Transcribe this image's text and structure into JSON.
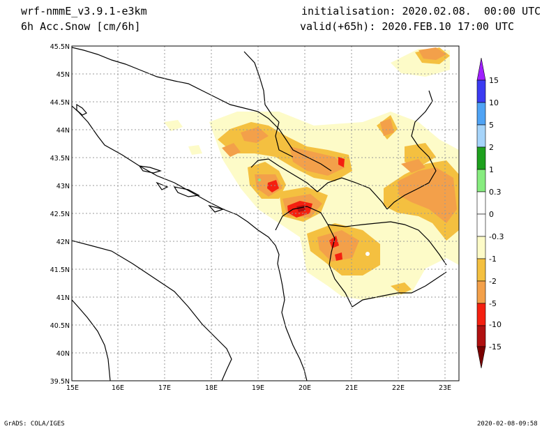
{
  "header": {
    "model": "wrf-nmmE_v3.9.1-e3km",
    "field": "6h Acc.Snow [cm/6h]",
    "init": "initialisation: 2020.02.08.  00:00 UTC",
    "valid": "valid(+65h): 2020.FEB.10 17:00 UTC"
  },
  "axes": {
    "x_labels": [
      "15E",
      "16E",
      "17E",
      "18E",
      "19E",
      "20E",
      "21E",
      "22E",
      "23E"
    ],
    "y_labels": [
      "45.5N",
      "45N",
      "44.5N",
      "44N",
      "43.5N",
      "43N",
      "42.5N",
      "42N",
      "41.5N",
      "41N",
      "40.5N",
      "40N",
      "39.5N"
    ]
  },
  "colorbar": {
    "labels": [
      "15",
      "10",
      "5",
      "2",
      "1",
      "0.3",
      "0",
      "-0.3",
      "-1",
      "-2",
      "-5",
      "-10",
      "-15"
    ],
    "colors": [
      "#9f1fff",
      "#3b3bf2",
      "#4fa3f5",
      "#a6d4fa",
      "#1ea01e",
      "#87ec7f",
      "#ffffff",
      "#fdfbc8",
      "#f4c040",
      "#f3a04a",
      "#f42010",
      "#b01010"
    ]
  },
  "footer": {
    "left": "GrADS: COLA/IGES",
    "right": "2020-02-08-09:58"
  }
}
